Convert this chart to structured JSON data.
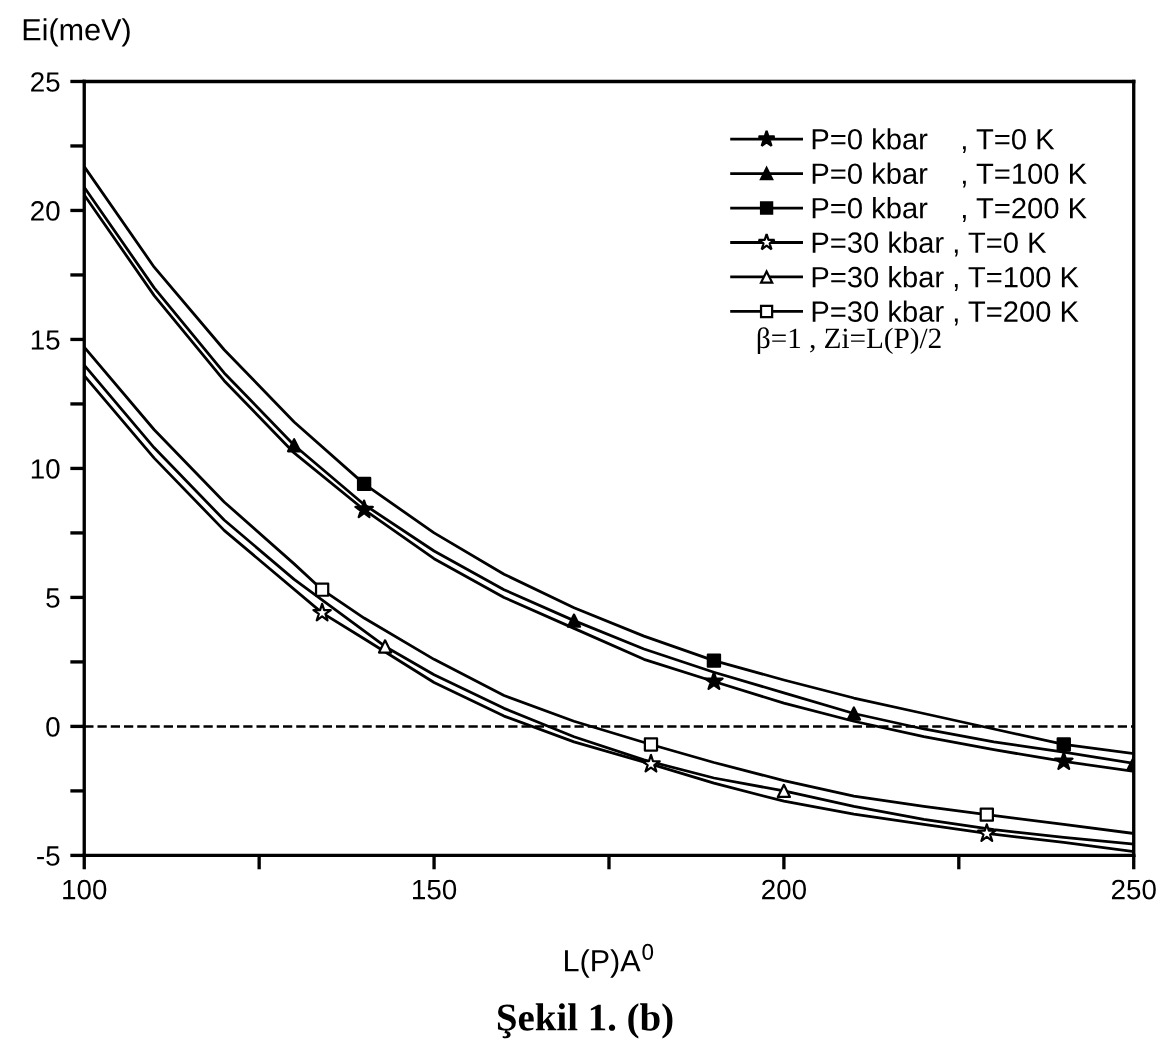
{
  "chart_data": {
    "type": "line",
    "ylabel": "Ei(meV)",
    "xlabel": "L(P)A$^{0}$",
    "xlim": [
      100,
      250
    ],
    "ylim": [
      -5,
      25
    ],
    "xticks": [
      100,
      {
        "value": 125,
        "label": null
      },
      150,
      {
        "value": 175,
        "label": null
      },
      200,
      {
        "value": 225,
        "label": null
      },
      250
    ],
    "yticks": [
      -5,
      {
        "value": -2.5,
        "label": null
      },
      0,
      {
        "value": 2.5,
        "label": null
      },
      5,
      {
        "value": 7.5,
        "label": null
      },
      10,
      {
        "value": 12.5,
        "label": null
      },
      15,
      {
        "value": 17.5,
        "label": null
      },
      20,
      {
        "value": 22.5,
        "label": null
      },
      25
    ],
    "grid": false,
    "legend": "top right",
    "line_style": "solid",
    "ref_lines": [
      {
        "axis": "y",
        "value": 0,
        "line_style": "dashed",
        "color": "#000000"
      }
    ],
    "annotations": [
      "β=1 , Zi=L(P)/2",
      "Şekil 1. (b)"
    ],
    "series": [
      {
        "color": "#000000",
        "marker": "none",
        "x": [
          100,
          110,
          120,
          130,
          140,
          150,
          160,
          170,
          180,
          190,
          200,
          210,
          220,
          230,
          240,
          250
        ],
        "values": [
          20.6,
          16.7,
          13.4,
          10.6,
          8.4,
          6.5,
          5.0,
          3.8,
          2.6,
          1.74,
          0.9,
          0.2,
          -0.4,
          -0.9,
          -1.36,
          -1.74
        ]
      },
      {
        "color": "#000000",
        "marker": "none",
        "x": [
          100,
          110,
          120,
          130,
          140,
          150,
          160,
          170,
          180,
          190,
          200,
          210,
          220,
          230,
          240,
          250
        ],
        "values": [
          20.9,
          17.0,
          13.7,
          10.9,
          8.6,
          6.8,
          5.3,
          4.1,
          3.0,
          2.1,
          1.3,
          0.5,
          -0.1,
          -0.6,
          -1.0,
          -1.43
        ]
      },
      {
        "color": "#000000",
        "marker": "none",
        "x": [
          100,
          110,
          120,
          130,
          140,
          150,
          160,
          170,
          180,
          190,
          200,
          210,
          220,
          230,
          240,
          250
        ],
        "values": [
          21.7,
          17.8,
          14.6,
          11.8,
          9.4,
          7.5,
          5.9,
          4.6,
          3.5,
          2.55,
          1.8,
          1.1,
          0.5,
          -0.1,
          -0.7,
          -1.05
        ]
      },
      {
        "color": "#000000",
        "marker": "none",
        "x": [
          100,
          110,
          120,
          134,
          140,
          150,
          160,
          170,
          181,
          190,
          200,
          210,
          220,
          229,
          240,
          250
        ],
        "values": [
          13.6,
          10.4,
          7.6,
          4.4,
          3.4,
          1.7,
          0.4,
          -0.6,
          -1.46,
          -2.2,
          -2.9,
          -3.4,
          -3.8,
          -4.15,
          -4.5,
          -4.85
        ]
      },
      {
        "color": "#000000",
        "marker": "none",
        "x": [
          100,
          110,
          120,
          130,
          143,
          150,
          160,
          170,
          180,
          190,
          200,
          210,
          220,
          230,
          240,
          250
        ],
        "values": [
          14.0,
          10.8,
          8.0,
          5.7,
          3.1,
          2.0,
          0.7,
          -0.4,
          -1.3,
          -2.0,
          -2.5,
          -3.1,
          -3.6,
          -4.0,
          -4.3,
          -4.56
        ]
      },
      {
        "color": "#000000",
        "marker": "none",
        "x": [
          100,
          110,
          120,
          130,
          134,
          140,
          150,
          160,
          170,
          181,
          190,
          200,
          210,
          220,
          229,
          240,
          250
        ],
        "values": [
          14.7,
          11.5,
          8.7,
          6.3,
          5.3,
          4.2,
          2.6,
          1.2,
          0.2,
          -0.7,
          -1.4,
          -2.1,
          -2.7,
          -3.1,
          -3.42,
          -3.8,
          -4.15
        ]
      },
      {
        "type": "scatter",
        "name": "P=0 kbar    , T=0 K",
        "color": "#000000",
        "marker": "star",
        "x": [
          140,
          190,
          240
        ],
        "values": [
          8.4,
          1.74,
          -1.36
        ]
      },
      {
        "type": "scatter",
        "name": "P=0 kbar    , T=100 K",
        "color": "#000000",
        "marker": "triangle",
        "x": [
          130,
          170,
          210,
          250
        ],
        "values": [
          10.9,
          4.1,
          0.5,
          -1.43
        ]
      },
      {
        "type": "scatter",
        "name": "P=0 kbar    , T=200 K",
        "color": "#000000",
        "marker": "square",
        "x": [
          140,
          190,
          240
        ],
        "values": [
          9.4,
          2.55,
          -0.7
        ]
      },
      {
        "type": "scatter",
        "name": "P=30 kbar , T=0 K",
        "color": "#ffffff",
        "marker": "star",
        "x": [
          134,
          181,
          229
        ],
        "values": [
          4.4,
          -1.46,
          -4.15
        ]
      },
      {
        "type": "scatter",
        "name": "P=30 kbar , T=100 K",
        "color": "#ffffff",
        "marker": "triangle",
        "x": [
          143,
          200
        ],
        "values": [
          3.1,
          -2.5
        ]
      },
      {
        "type": "scatter",
        "name": "P=30 kbar , T=200 K",
        "color": "#ffffff",
        "marker": "square",
        "x": [
          134,
          181,
          229
        ],
        "values": [
          5.3,
          -0.7,
          -3.42
        ]
      }
    ]
  }
}
